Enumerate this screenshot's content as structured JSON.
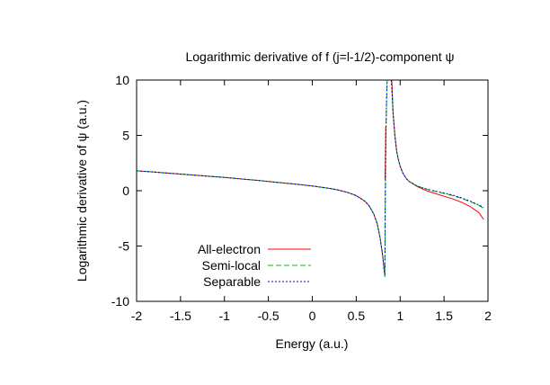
{
  "chart_data": {
    "type": "line",
    "title": "Logarithmic derivative of f (j=l-1/2)-component ψ",
    "xlabel": "Energy (a.u.)",
    "ylabel": "Logarithmic derivative of ψ (a.u.)",
    "xlim": [
      -2,
      2
    ],
    "ylim": [
      -10,
      10
    ],
    "xticks": [
      -2,
      -1.5,
      -1,
      -0.5,
      0,
      0.5,
      1,
      1.5,
      2
    ],
    "xtick_labels": [
      "-2",
      "-1.5",
      "-1",
      "-0.5",
      "0",
      "0.5",
      "1",
      "1.5",
      "2"
    ],
    "yticks": [
      -10,
      -5,
      0,
      5,
      10
    ],
    "ytick_labels": [
      "-10",
      "-5",
      "0",
      "5",
      "10"
    ],
    "grid": false,
    "legend_position": "bottom-left",
    "series": [
      {
        "name": "All-electron",
        "color": "#ff0000",
        "dash": "solid",
        "segments": [
          [
            [
              -2.0,
              1.8
            ],
            [
              -1.8,
              1.68
            ],
            [
              -1.6,
              1.56
            ],
            [
              -1.4,
              1.44
            ],
            [
              -1.2,
              1.32
            ],
            [
              -1.0,
              1.2
            ],
            [
              -0.8,
              1.06
            ],
            [
              -0.6,
              0.92
            ],
            [
              -0.4,
              0.76
            ],
            [
              -0.2,
              0.6
            ],
            [
              0.0,
              0.42
            ],
            [
              0.1,
              0.32
            ],
            [
              0.2,
              0.2
            ],
            [
              0.3,
              0.05
            ],
            [
              0.4,
              -0.15
            ],
            [
              0.5,
              -0.45
            ],
            [
              0.6,
              -0.95
            ],
            [
              0.65,
              -1.4
            ],
            [
              0.7,
              -2.1
            ],
            [
              0.74,
              -3.0
            ],
            [
              0.77,
              -4.2
            ],
            [
              0.8,
              -5.8
            ],
            [
              0.82,
              -7.3
            ],
            [
              0.828,
              -7.6
            ]
          ],
          [
            [
              0.828,
              1.0
            ],
            [
              0.832,
              3.0
            ],
            [
              0.836,
              5.8
            ]
          ],
          [
            [
              0.905,
              10.0
            ],
            [
              0.92,
              7.0
            ],
            [
              0.94,
              5.0
            ],
            [
              0.96,
              3.6
            ],
            [
              0.98,
              2.8
            ],
            [
              1.0,
              2.2
            ],
            [
              1.03,
              1.6
            ],
            [
              1.07,
              1.1
            ],
            [
              1.1,
              0.85
            ],
            [
              1.2,
              0.35
            ],
            [
              1.3,
              0.0
            ],
            [
              1.4,
              -0.25
            ],
            [
              1.5,
              -0.5
            ],
            [
              1.6,
              -0.75
            ],
            [
              1.7,
              -1.05
            ],
            [
              1.8,
              -1.45
            ],
            [
              1.9,
              -2.0
            ],
            [
              1.95,
              -2.6
            ]
          ]
        ]
      },
      {
        "name": "Semi-local",
        "color": "#00bb00",
        "dash": "6,3",
        "segments": [
          [
            [
              -2.0,
              1.8
            ],
            [
              -1.8,
              1.68
            ],
            [
              -1.6,
              1.56
            ],
            [
              -1.4,
              1.44
            ],
            [
              -1.2,
              1.32
            ],
            [
              -1.0,
              1.2
            ],
            [
              -0.8,
              1.06
            ],
            [
              -0.6,
              0.92
            ],
            [
              -0.4,
              0.76
            ],
            [
              -0.2,
              0.6
            ],
            [
              0.0,
              0.42
            ],
            [
              0.1,
              0.32
            ],
            [
              0.2,
              0.2
            ],
            [
              0.3,
              0.05
            ],
            [
              0.4,
              -0.15
            ],
            [
              0.5,
              -0.45
            ],
            [
              0.6,
              -0.95
            ],
            [
              0.65,
              -1.4
            ],
            [
              0.7,
              -2.1
            ],
            [
              0.74,
              -3.0
            ],
            [
              0.77,
              -4.2
            ],
            [
              0.8,
              -5.8
            ],
            [
              0.82,
              -7.3
            ],
            [
              0.826,
              -7.8
            ]
          ],
          [
            [
              0.826,
              -7.8
            ],
            [
              0.832,
              0.0
            ],
            [
              0.838,
              5.0
            ],
            [
              0.845,
              8.0
            ],
            [
              0.852,
              10.0
            ]
          ],
          [
            [
              0.9,
              10.0
            ],
            [
              0.92,
              7.0
            ],
            [
              0.94,
              5.0
            ],
            [
              0.96,
              3.6
            ],
            [
              0.98,
              2.8
            ],
            [
              1.0,
              2.2
            ],
            [
              1.03,
              1.6
            ],
            [
              1.07,
              1.1
            ],
            [
              1.1,
              0.85
            ],
            [
              1.2,
              0.4
            ],
            [
              1.3,
              0.15
            ],
            [
              1.4,
              -0.05
            ],
            [
              1.5,
              -0.25
            ],
            [
              1.6,
              -0.45
            ],
            [
              1.7,
              -0.7
            ],
            [
              1.8,
              -1.0
            ],
            [
              1.9,
              -1.35
            ],
            [
              1.95,
              -1.6
            ]
          ]
        ]
      },
      {
        "name": "Separable",
        "color": "#0000cc",
        "dash": "2,2",
        "segments": [
          [
            [
              -2.0,
              1.8
            ],
            [
              -1.8,
              1.68
            ],
            [
              -1.6,
              1.56
            ],
            [
              -1.4,
              1.44
            ],
            [
              -1.2,
              1.32
            ],
            [
              -1.0,
              1.2
            ],
            [
              -0.8,
              1.06
            ],
            [
              -0.6,
              0.92
            ],
            [
              -0.4,
              0.76
            ],
            [
              -0.2,
              0.6
            ],
            [
              0.0,
              0.42
            ],
            [
              0.1,
              0.32
            ],
            [
              0.2,
              0.2
            ],
            [
              0.3,
              0.05
            ],
            [
              0.4,
              -0.15
            ],
            [
              0.5,
              -0.45
            ],
            [
              0.6,
              -0.95
            ],
            [
              0.65,
              -1.4
            ],
            [
              0.7,
              -2.1
            ],
            [
              0.74,
              -3.0
            ],
            [
              0.77,
              -4.2
            ],
            [
              0.8,
              -5.8
            ],
            [
              0.82,
              -7.3
            ],
            [
              0.826,
              -7.6
            ]
          ],
          [
            [
              0.826,
              -7.6
            ],
            [
              0.832,
              0.0
            ],
            [
              0.838,
              5.0
            ],
            [
              0.845,
              8.0
            ],
            [
              0.852,
              10.0
            ]
          ],
          [
            [
              0.9,
              10.0
            ],
            [
              0.92,
              7.0
            ],
            [
              0.94,
              5.0
            ],
            [
              0.96,
              3.6
            ],
            [
              0.98,
              2.8
            ],
            [
              1.0,
              2.2
            ],
            [
              1.03,
              1.6
            ],
            [
              1.07,
              1.1
            ],
            [
              1.1,
              0.85
            ],
            [
              1.2,
              0.4
            ],
            [
              1.3,
              0.15
            ],
            [
              1.4,
              -0.05
            ],
            [
              1.5,
              -0.2
            ],
            [
              1.6,
              -0.4
            ],
            [
              1.7,
              -0.65
            ],
            [
              1.8,
              -0.95
            ],
            [
              1.9,
              -1.3
            ],
            [
              1.95,
              -1.5
            ]
          ]
        ]
      }
    ]
  }
}
